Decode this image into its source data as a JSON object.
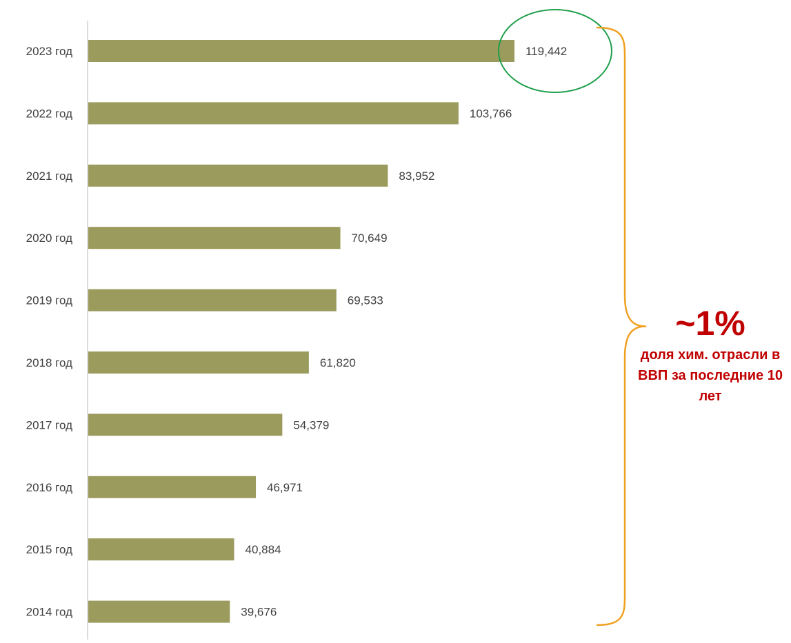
{
  "colors": {
    "bar": "#9B9B5E",
    "axis": "#D0D0D0",
    "label_text": "#404040",
    "highlight_circle": "#1E9E4A",
    "brace": "#F0A020",
    "callout_text": "#C00000"
  },
  "callout": {
    "big": "~1%",
    "text": "доля хим. отрасли в ВВП за последние 10 лет"
  },
  "chart_data": {
    "type": "bar",
    "orientation": "horizontal",
    "categories": [
      "2023 год",
      "2022 год",
      "2021 год",
      "2020 год",
      "2019 год",
      "2018 год",
      "2017 год",
      "2016 год",
      "2015 год",
      "2014 год"
    ],
    "values": [
      119.442,
      103.766,
      83.952,
      70.649,
      69.533,
      61.82,
      54.379,
      46.971,
      40.884,
      39.676
    ],
    "value_labels": [
      "119,442",
      "103,766",
      "83,952",
      "70,649",
      "69,533",
      "61,820",
      "54,379",
      "46,971",
      "40,884",
      "39,676"
    ],
    "highlighted_category": "2023 год",
    "xlim": [
      0,
      119.442
    ],
    "grid": false,
    "legend": "none"
  }
}
